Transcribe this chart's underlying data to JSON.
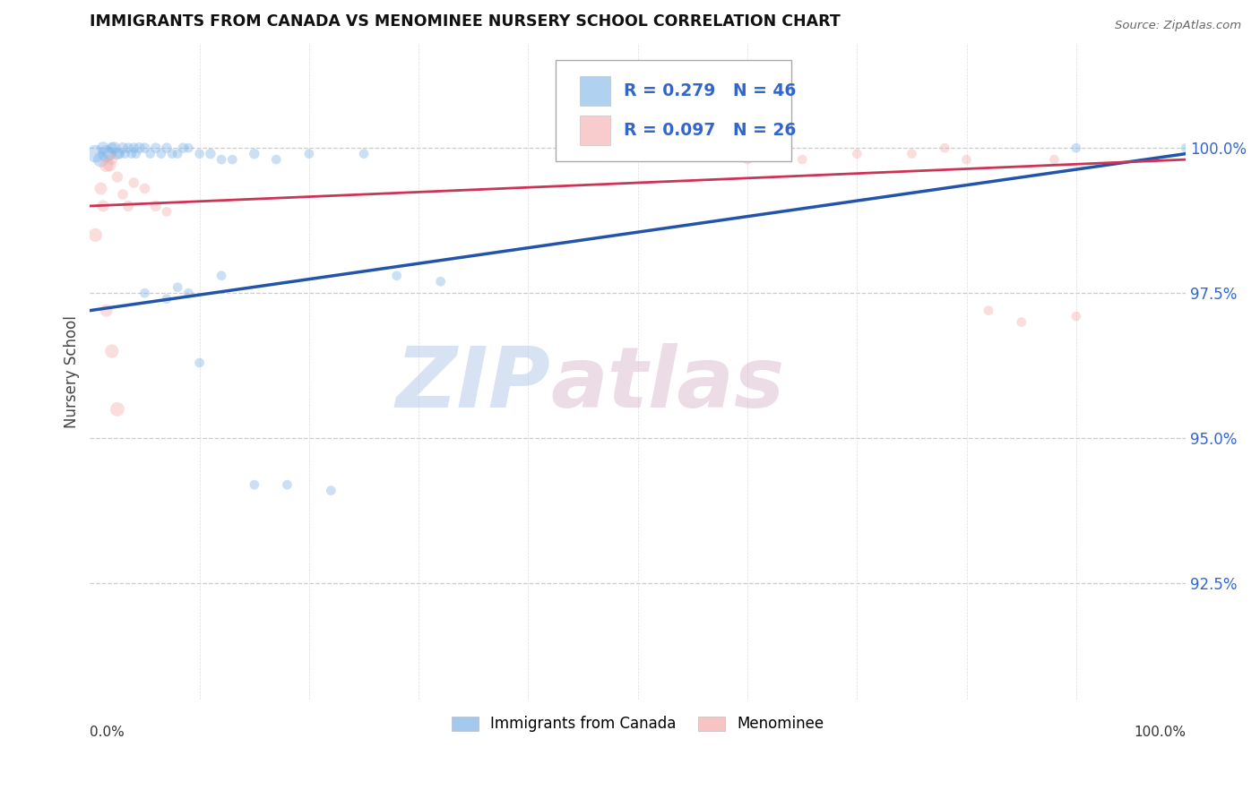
{
  "title": "IMMIGRANTS FROM CANADA VS MENOMINEE NURSERY SCHOOL CORRELATION CHART",
  "source": "Source: ZipAtlas.com",
  "ylabel": "Nursery School",
  "ytick_labels": [
    "100.0%",
    "97.5%",
    "95.0%",
    "92.5%"
  ],
  "ytick_values": [
    1.0,
    0.975,
    0.95,
    0.925
  ],
  "xlim": [
    0.0,
    1.0
  ],
  "ylim": [
    0.905,
    1.018
  ],
  "legend_blue_label": "Immigrants from Canada",
  "legend_pink_label": "Menominee",
  "legend_r_blue": "R = 0.279",
  "legend_n_blue": "N = 46",
  "legend_r_pink": "R = 0.097",
  "legend_n_pink": "N = 26",
  "blue_color": "#7EB3E8",
  "pink_color": "#F4AAAA",
  "blue_line_color": "#2255AA",
  "pink_line_color": "#CC3355",
  "watermark_zip": "ZIP",
  "watermark_atlas": "atlas",
  "blue_scatter_x": [
    0.005,
    0.01,
    0.012,
    0.015,
    0.018,
    0.02,
    0.022,
    0.025,
    0.027,
    0.03,
    0.032,
    0.035,
    0.038,
    0.04,
    0.042,
    0.045,
    0.05,
    0.055,
    0.06,
    0.065,
    0.07,
    0.075,
    0.08,
    0.085,
    0.09,
    0.1,
    0.11,
    0.12,
    0.13,
    0.15,
    0.17,
    0.2,
    0.25,
    0.28,
    0.32,
    0.05,
    0.08,
    0.1,
    0.12,
    0.15,
    0.18,
    0.22,
    0.9,
    1.0,
    0.07,
    0.09
  ],
  "blue_scatter_y": [
    0.999,
    0.998,
    1.0,
    0.999,
    0.999,
    1.0,
    1.0,
    0.999,
    0.999,
    1.0,
    0.999,
    1.0,
    0.999,
    1.0,
    0.999,
    1.0,
    1.0,
    0.999,
    1.0,
    0.999,
    1.0,
    0.999,
    0.999,
    1.0,
    1.0,
    0.999,
    0.999,
    0.998,
    0.998,
    0.999,
    0.998,
    0.999,
    0.999,
    0.978,
    0.977,
    0.975,
    0.976,
    0.963,
    0.978,
    0.942,
    0.942,
    0.941,
    1.0,
    1.0,
    0.974,
    0.975
  ],
  "blue_scatter_sizes": [
    200,
    150,
    100,
    180,
    120,
    80,
    100,
    90,
    70,
    80,
    60,
    70,
    60,
    70,
    60,
    80,
    70,
    60,
    70,
    60,
    70,
    60,
    60,
    70,
    60,
    60,
    70,
    60,
    60,
    70,
    60,
    60,
    60,
    60,
    60,
    60,
    60,
    60,
    60,
    60,
    60,
    60,
    60,
    60,
    60,
    60
  ],
  "pink_scatter_x": [
    0.005,
    0.01,
    0.012,
    0.015,
    0.018,
    0.02,
    0.025,
    0.03,
    0.035,
    0.04,
    0.05,
    0.06,
    0.07,
    0.015,
    0.02,
    0.025,
    0.6,
    0.65,
    0.7,
    0.75,
    0.78,
    0.8,
    0.82,
    0.85,
    0.88,
    0.9
  ],
  "pink_scatter_y": [
    0.985,
    0.993,
    0.99,
    0.997,
    0.997,
    0.998,
    0.995,
    0.992,
    0.99,
    0.994,
    0.993,
    0.99,
    0.989,
    0.972,
    0.965,
    0.955,
    0.998,
    0.998,
    0.999,
    0.999,
    1.0,
    0.998,
    0.972,
    0.97,
    0.998,
    0.971
  ],
  "pink_scatter_sizes": [
    120,
    100,
    90,
    120,
    100,
    80,
    80,
    70,
    80,
    70,
    70,
    80,
    60,
    100,
    120,
    130,
    60,
    60,
    60,
    60,
    60,
    60,
    60,
    60,
    60,
    60
  ],
  "blue_line_x": [
    0.0,
    1.0
  ],
  "blue_line_y": [
    0.972,
    0.999
  ],
  "pink_line_x": [
    0.0,
    1.0
  ],
  "pink_line_y": [
    0.99,
    0.998
  ]
}
